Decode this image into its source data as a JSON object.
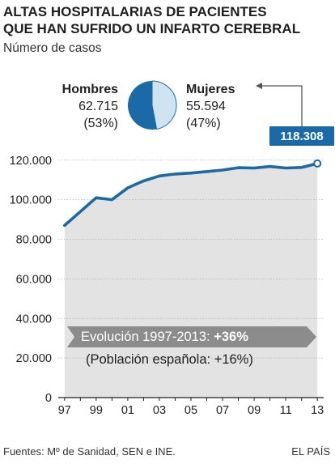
{
  "header": {
    "title_line1": "ALTAS HOSPITALARIAS DE PACIENTES",
    "title_line2": "QUE HAN SUFRIDO UN INFARTO CEREBRAL",
    "subtitle": "Número de casos"
  },
  "legend": {
    "men_label": "Hombres",
    "men_value": "62.715",
    "men_pct": "(53%)",
    "women_label": "Mujeres",
    "women_value": "55.594",
    "women_pct": "(47%)"
  },
  "annotations": {
    "last_value": "118.308",
    "evolution_prefix": "Evolución 1997-2013: ",
    "evolution_value": "+36%",
    "population": "(Población española: +16%)"
  },
  "footer": {
    "sources": "Fuentes: Mº de Sanidad, SEN e INE.",
    "brand": "EL PAÍS"
  },
  "colors": {
    "line": "#1a6aa8",
    "area": "#e3e3e3",
    "pie_men": "#1a6aa8",
    "pie_women": "#cfe3f0",
    "callout": "#1a6aa8",
    "evolution_bg": "#8c8c8c"
  },
  "chart_data": {
    "type": "area",
    "title": "ALTAS HOSPITALARIAS DE PACIENTES QUE HAN SUFRIDO UN INFARTO CEREBRAL",
    "subtitle": "Número de casos",
    "x": [
      1997,
      1998,
      1999,
      2000,
      2001,
      2002,
      2003,
      2004,
      2005,
      2006,
      2007,
      2008,
      2009,
      2010,
      2011,
      2012,
      2013
    ],
    "values": [
      87000,
      94000,
      101000,
      100000,
      106000,
      109500,
      112000,
      113000,
      113500,
      114200,
      115000,
      116200,
      116000,
      116800,
      116000,
      116300,
      118308
    ],
    "x_tick_labels": [
      "97",
      "99",
      "01",
      "03",
      "05",
      "07",
      "09",
      "11",
      "13"
    ],
    "x_tick_values": [
      1997,
      1999,
      2001,
      2003,
      2005,
      2007,
      2009,
      2011,
      2013
    ],
    "y_tick_labels": [
      "0",
      "20.000",
      "40.000",
      "60.000",
      "80.000",
      "100.000",
      "120.000"
    ],
    "y_tick_values": [
      0,
      20000,
      40000,
      60000,
      80000,
      100000,
      120000
    ],
    "ylim": [
      0,
      124000
    ],
    "xlim": [
      1996.6,
      2013.4
    ],
    "grid": true,
    "xlabel": "",
    "ylabel": "",
    "pie": {
      "type": "pie",
      "categories": [
        "Hombres",
        "Mujeres"
      ],
      "values": [
        62715,
        55594
      ],
      "percent": [
        53,
        47
      ]
    }
  }
}
